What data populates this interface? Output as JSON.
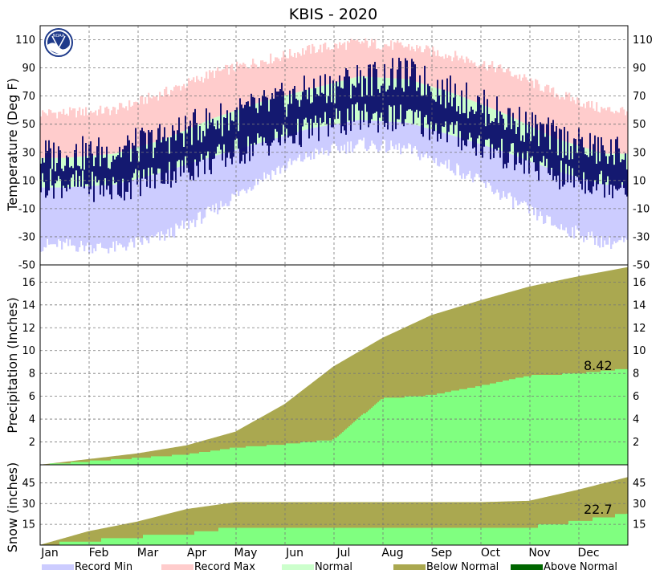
{
  "chart_data": {
    "type": "area",
    "title": "KBIS - 2020",
    "months": [
      "Jan",
      "Feb",
      "Mar",
      "Apr",
      "May",
      "Jun",
      "Jul",
      "Aug",
      "Sep",
      "Oct",
      "Nov",
      "Dec"
    ],
    "grid": true,
    "legend_placement": "bottom",
    "legend": [
      {
        "label": "Record Min",
        "color": "#ccccff"
      },
      {
        "label": "Record Max",
        "color": "#ffcccc"
      },
      {
        "label": "Normal",
        "color": "#ccffcc"
      },
      {
        "label": "Below Normal",
        "color": "#aaa850"
      },
      {
        "label": "Above Normal",
        "color": "#006600"
      }
    ],
    "panels": {
      "temperature": {
        "ylabel": "Temperature (Deg F)",
        "ylim": [
          -50,
          120
        ],
        "ticks": [
          110,
          90,
          70,
          50,
          30,
          10,
          -10,
          -30,
          -50
        ],
        "colors": {
          "record_min": "#ccccff",
          "record_max": "#ffcccc",
          "normal": "#ccffcc",
          "observed": "#000066"
        },
        "record_max_monthly": [
          58,
          60,
          72,
          86,
          95,
          103,
          108,
          105,
          98,
          88,
          72,
          60
        ],
        "normal_high_monthly": [
          26,
          29,
          39,
          54,
          66,
          75,
          84,
          82,
          71,
          57,
          40,
          29
        ],
        "normal_low_monthly": [
          5,
          7,
          16,
          27,
          37,
          47,
          53,
          51,
          41,
          30,
          17,
          7
        ],
        "record_min_monthly": [
          -36,
          -38,
          -30,
          -12,
          12,
          28,
          36,
          32,
          18,
          -2,
          -22,
          -34
        ],
        "observed_high_monthly": [
          28,
          30,
          40,
          52,
          62,
          73,
          82,
          85,
          70,
          55,
          40,
          30
        ],
        "observed_low_monthly": [
          8,
          4,
          14,
          24,
          36,
          46,
          55,
          54,
          42,
          28,
          14,
          8
        ]
      },
      "precipitation": {
        "ylabel": "Precipitation (Inches)",
        "ylim": [
          0,
          17.5
        ],
        "ticks": [
          16,
          14,
          12,
          10,
          8,
          6,
          4,
          2
        ],
        "colors": {
          "normal": "#aaa850",
          "observed": "#80ff80"
        },
        "normal_cumulative_month_end": [
          0.5,
          1.0,
          1.7,
          2.9,
          5.3,
          8.6,
          11.1,
          13.1,
          14.4,
          15.6,
          16.5,
          17.3
        ],
        "observed_cumulative_month_end": [
          0.3,
          0.6,
          0.9,
          1.5,
          1.8,
          2.2,
          5.8,
          6.1,
          6.9,
          7.8,
          8.0,
          8.42
        ],
        "total_label": "8.42"
      },
      "snow": {
        "ylabel": "Snow (inches)",
        "ylim": [
          0,
          58
        ],
        "ticks": [
          45,
          30,
          15
        ],
        "colors": {
          "normal": "#aaa850",
          "observed": "#80ff80"
        },
        "normal_cumulative_month_end": [
          10,
          17,
          26,
          31,
          31,
          31,
          31,
          31,
          31,
          32,
          40,
          49
        ],
        "observed_cumulative_month_end": [
          3,
          6,
          8,
          13,
          13,
          13,
          13,
          13,
          13,
          13,
          17,
          22.7
        ],
        "total_label": "22.7"
      }
    }
  }
}
